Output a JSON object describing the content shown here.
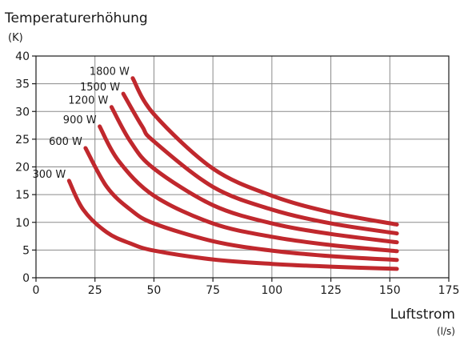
{
  "chart_data": {
    "type": "line",
    "ylabel": "Temperaturerhöhung",
    "yunit": "(K)",
    "xlabel": "Luftstrom",
    "xunit": "(l/s)",
    "xlim": [
      0,
      175
    ],
    "ylim": [
      0,
      40
    ],
    "xticks": [
      0,
      25,
      50,
      75,
      100,
      125,
      150,
      175
    ],
    "yticks": [
      0,
      5,
      10,
      15,
      20,
      25,
      30,
      35,
      40
    ],
    "grid": true,
    "line_color": "#c0282d",
    "series": [
      {
        "name": "300 W",
        "x": [
          14,
          20,
          30,
          40,
          50,
          75,
          100,
          125,
          153
        ],
        "y": [
          17.5,
          12.3,
          8.2,
          6.2,
          4.9,
          3.3,
          2.5,
          2.0,
          1.6
        ]
      },
      {
        "name": "600 W",
        "x": [
          21,
          30,
          40,
          50,
          75,
          100,
          125,
          153
        ],
        "y": [
          23.4,
          16.4,
          12.3,
          9.8,
          6.6,
          4.9,
          3.9,
          3.2
        ]
      },
      {
        "name": "900 W",
        "x": [
          27,
          35,
          50,
          75,
          100,
          125,
          153
        ],
        "y": [
          27.3,
          21.1,
          14.8,
          9.8,
          7.4,
          5.9,
          4.8
        ]
      },
      {
        "name": "1200 W",
        "x": [
          32,
          40,
          50,
          75,
          100,
          125,
          153
        ],
        "y": [
          30.8,
          24.6,
          19.7,
          13.1,
          9.8,
          7.9,
          6.4
        ]
      },
      {
        "name": "1500 W",
        "x": [
          37,
          45,
          50,
          75,
          100,
          125,
          153
        ],
        "y": [
          33.2,
          27.3,
          24.6,
          16.4,
          12.3,
          9.8,
          8.0
        ]
      },
      {
        "name": "1800 W",
        "x": [
          41,
          50,
          75,
          100,
          125,
          153
        ],
        "y": [
          36.0,
          29.5,
          19.7,
          14.8,
          11.8,
          9.6
        ]
      }
    ]
  }
}
